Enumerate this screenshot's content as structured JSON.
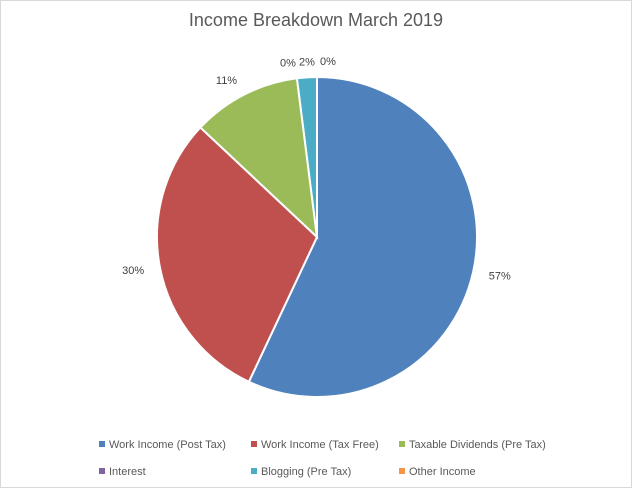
{
  "chart_data": {
    "type": "pie",
    "title": "Income Breakdown March 2019",
    "series": [
      {
        "values": [
          57,
          30,
          11,
          0,
          2,
          0
        ],
        "labels": [
          "57%",
          "30%",
          "11%",
          "0%",
          "2%",
          "0%"
        ]
      }
    ],
    "categories": [
      "Work Income (Post Tax)",
      "Work Income (Tax Free)",
      "Taxable Dividends (Pre Tax)",
      "Interest",
      "Blogging (Pre Tax)",
      "Other Income"
    ],
    "colors": [
      "#4f81bd",
      "#c0504d",
      "#9bbb59",
      "#8064a2",
      "#4bacc6",
      "#f79646"
    ],
    "legend_position": "bottom"
  }
}
